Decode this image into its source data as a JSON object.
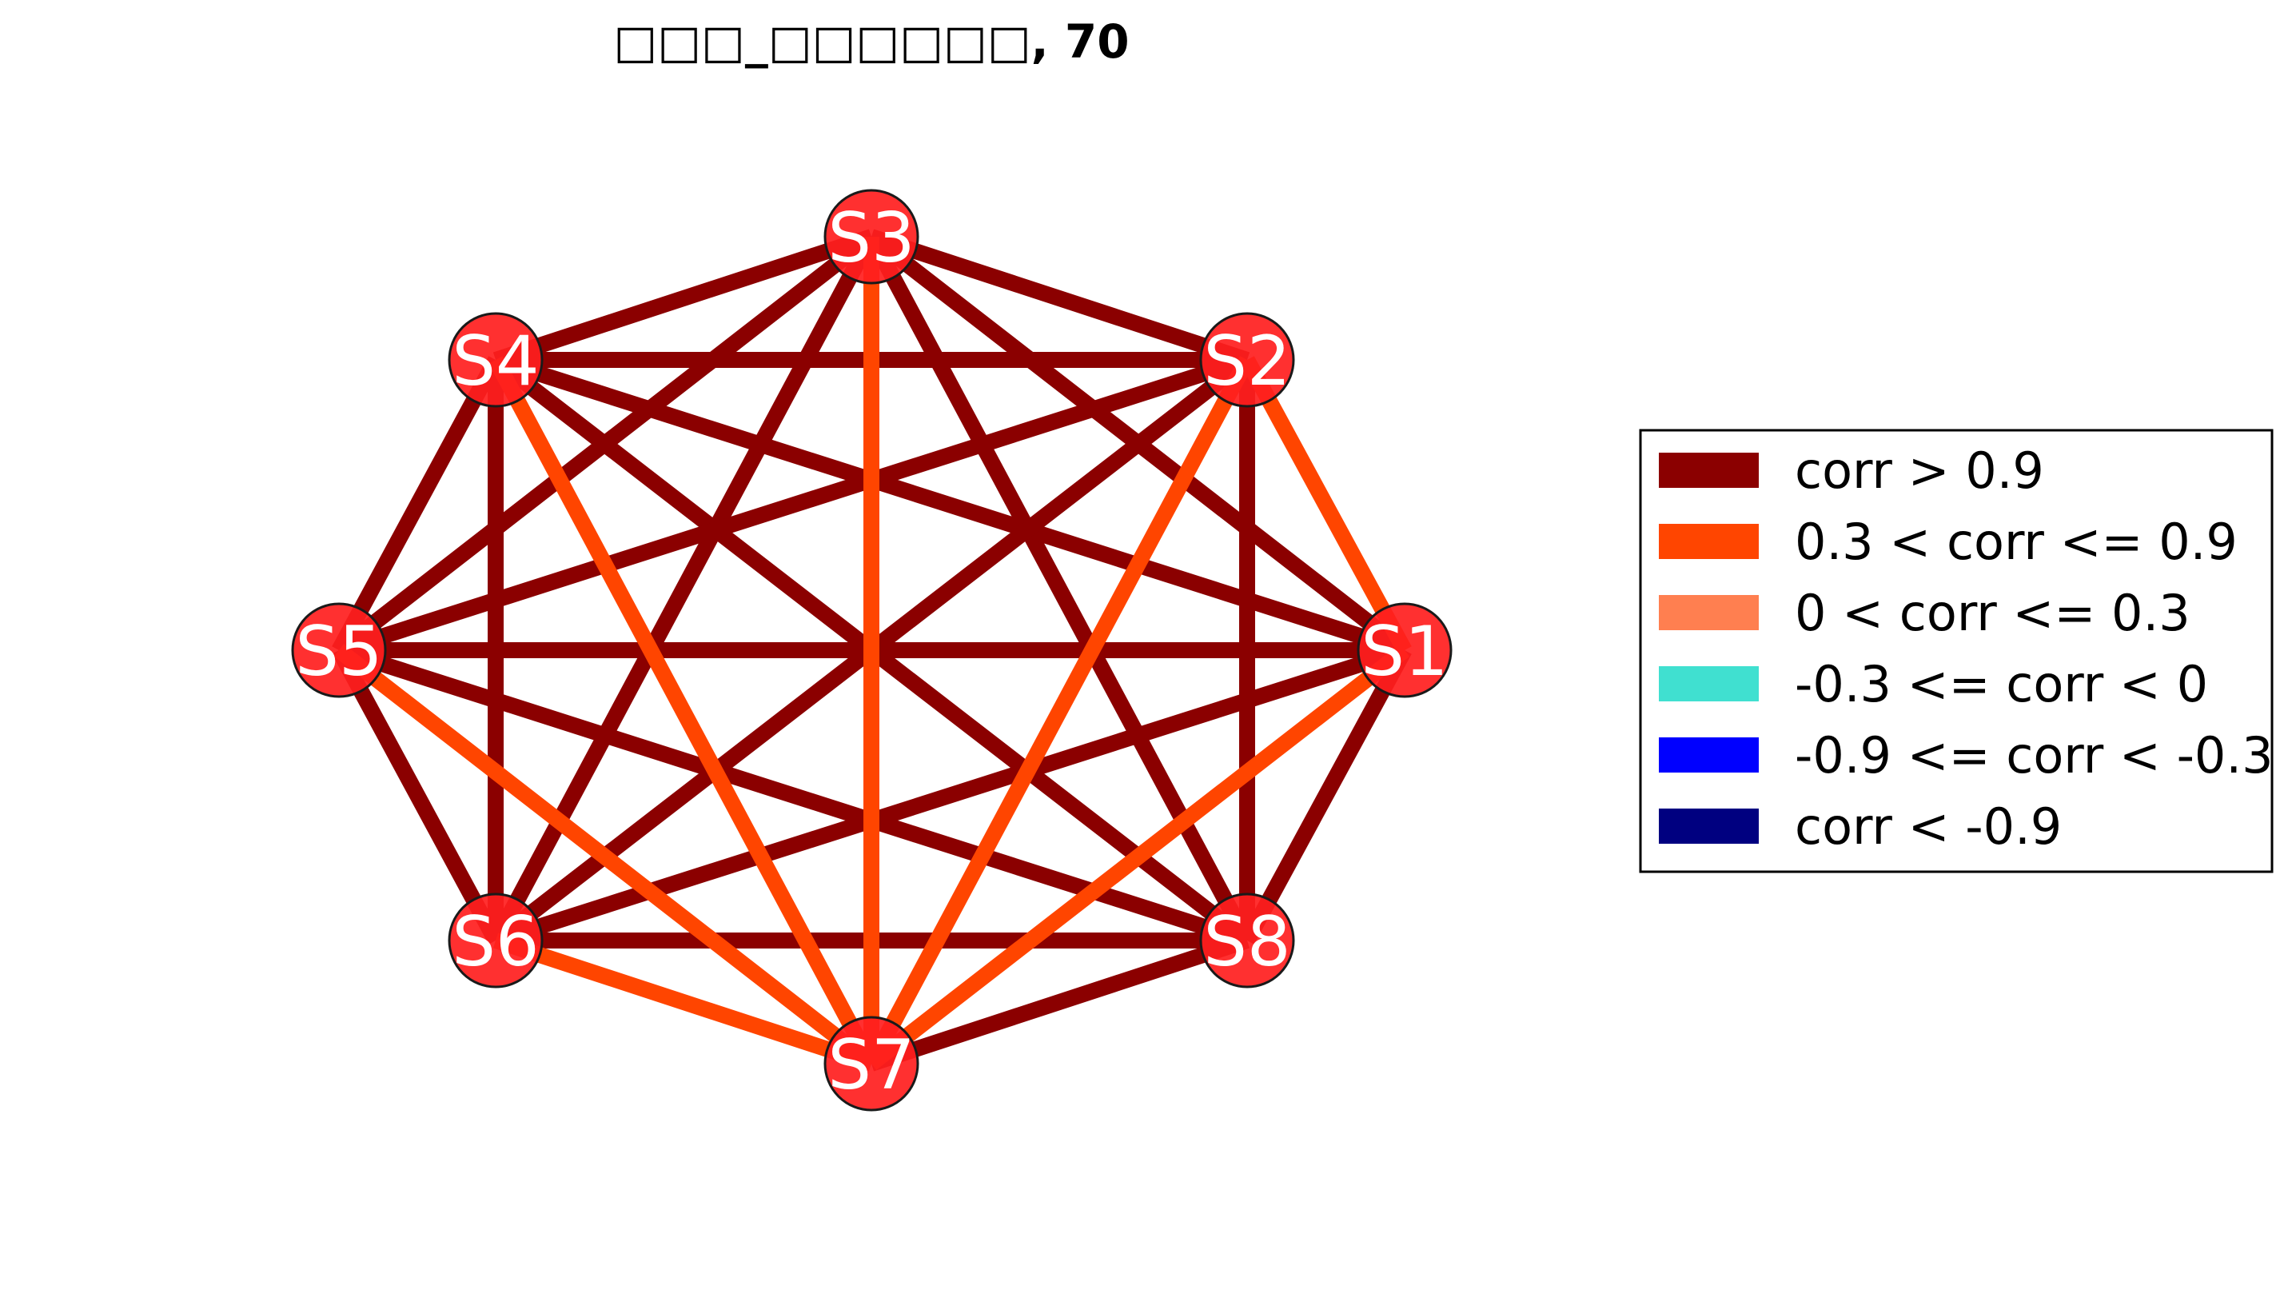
{
  "title": "□□□_□□□□□□, 70",
  "nodes": [
    {
      "id": "S1",
      "label": "S1"
    },
    {
      "id": "S2",
      "label": "S2"
    },
    {
      "id": "S3",
      "label": "S3"
    },
    {
      "id": "S4",
      "label": "S4"
    },
    {
      "id": "S5",
      "label": "S5"
    },
    {
      "id": "S6",
      "label": "S6"
    },
    {
      "id": "S7",
      "label": "S7"
    },
    {
      "id": "S8",
      "label": "S8"
    }
  ],
  "node_color": "#ff1e1e",
  "edges": [
    {
      "source": "S3",
      "target": "S4",
      "category": "strong_pos"
    },
    {
      "source": "S3",
      "target": "S2",
      "category": "strong_pos"
    },
    {
      "source": "S3",
      "target": "S5",
      "category": "strong_pos"
    },
    {
      "source": "S3",
      "target": "S1",
      "category": "strong_pos"
    },
    {
      "source": "S3",
      "target": "S6",
      "category": "strong_pos"
    },
    {
      "source": "S3",
      "target": "S8",
      "category": "strong_pos"
    },
    {
      "source": "S3",
      "target": "S7",
      "category": "moderate_pos"
    },
    {
      "source": "S4",
      "target": "S2",
      "category": "strong_pos"
    },
    {
      "source": "S4",
      "target": "S5",
      "category": "strong_pos"
    },
    {
      "source": "S4",
      "target": "S1",
      "category": "strong_pos"
    },
    {
      "source": "S4",
      "target": "S6",
      "category": "strong_pos"
    },
    {
      "source": "S4",
      "target": "S8",
      "category": "strong_pos"
    },
    {
      "source": "S4",
      "target": "S7",
      "category": "moderate_pos"
    },
    {
      "source": "S2",
      "target": "S5",
      "category": "strong_pos"
    },
    {
      "source": "S2",
      "target": "S1",
      "category": "moderate_pos"
    },
    {
      "source": "S2",
      "target": "S6",
      "category": "strong_pos"
    },
    {
      "source": "S2",
      "target": "S8",
      "category": "strong_pos"
    },
    {
      "source": "S2",
      "target": "S7",
      "category": "moderate_pos"
    },
    {
      "source": "S5",
      "target": "S1",
      "category": "strong_pos"
    },
    {
      "source": "S5",
      "target": "S6",
      "category": "strong_pos"
    },
    {
      "source": "S5",
      "target": "S8",
      "category": "strong_pos"
    },
    {
      "source": "S5",
      "target": "S7",
      "category": "moderate_pos"
    },
    {
      "source": "S1",
      "target": "S6",
      "category": "strong_pos"
    },
    {
      "source": "S1",
      "target": "S8",
      "category": "strong_pos"
    },
    {
      "source": "S1",
      "target": "S7",
      "category": "moderate_pos"
    },
    {
      "source": "S6",
      "target": "S8",
      "category": "strong_pos"
    },
    {
      "source": "S6",
      "target": "S7",
      "category": "moderate_pos"
    },
    {
      "source": "S8",
      "target": "S7",
      "category": "strong_pos"
    }
  ],
  "legend": [
    {
      "key": "strong_pos",
      "label": "corr > 0.9",
      "color": "#8b0000"
    },
    {
      "key": "moderate_pos",
      "label": "0.3 < corr <= 0.9",
      "color": "#ff4500"
    },
    {
      "key": "weak_pos",
      "label": "0 < corr <= 0.3",
      "color": "#ff7f50"
    },
    {
      "key": "weak_neg",
      "label": "-0.3 <= corr < 0",
      "color": "#40e0d0"
    },
    {
      "key": "moderate_neg",
      "label": "-0.9 <= corr < -0.3",
      "color": "#0000ff"
    },
    {
      "key": "strong_neg",
      "label": "corr < -0.9",
      "color": "#000080"
    }
  ]
}
